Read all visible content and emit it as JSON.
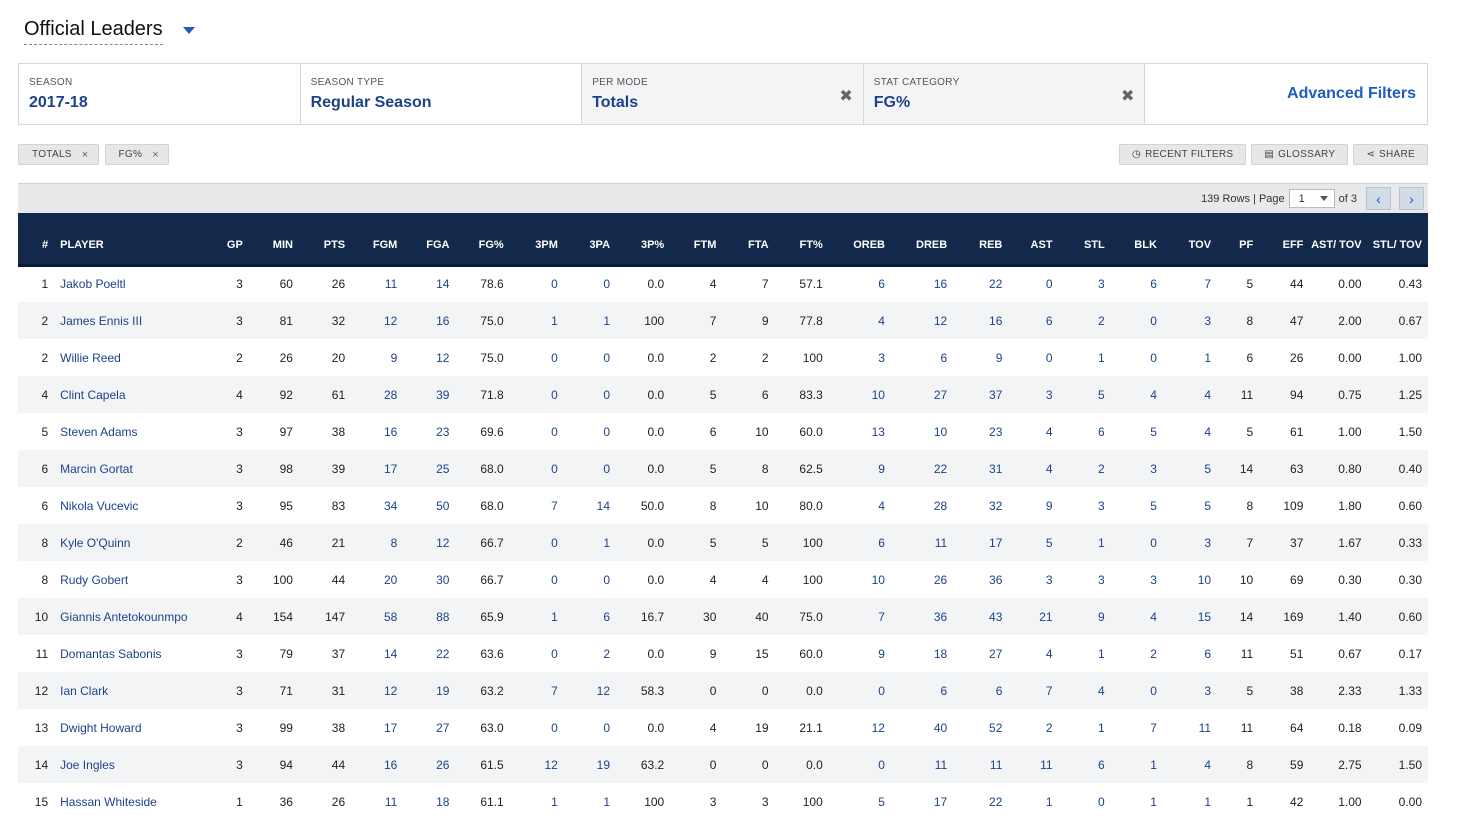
{
  "header": {
    "title": "Official Leaders"
  },
  "filters": [
    {
      "label": "SEASON",
      "value": "2017-18",
      "clearable": false
    },
    {
      "label": "SEASON TYPE",
      "value": "Regular Season",
      "clearable": false
    },
    {
      "label": "PER MODE",
      "value": "Totals",
      "clearable": true
    },
    {
      "label": "STAT CATEGORY",
      "value": "FG%",
      "clearable": true
    }
  ],
  "advanced_filters_label": "Advanced Filters",
  "clear_icon": "✖",
  "chips": [
    {
      "label": "TOTALS",
      "x": "×"
    },
    {
      "label": "FG%",
      "x": "×"
    }
  ],
  "tools": [
    {
      "label": "RECENT FILTERS",
      "icon": "clock-icon",
      "glyph": "◷"
    },
    {
      "label": "GLOSSARY",
      "icon": "book-icon",
      "glyph": "▤"
    },
    {
      "label": "SHARE",
      "icon": "share-icon",
      "glyph": "⋖"
    }
  ],
  "pager": {
    "rows_text": "139 Rows | Page",
    "page": "1",
    "of_text": "of 3",
    "prev": "‹",
    "next": "›"
  },
  "colors": {
    "header_bg": "#13294b",
    "link": "#1d428a",
    "accent": "#1d5dbf"
  },
  "table": {
    "columns": [
      "#",
      "PLAYER",
      "GP",
      "MIN",
      "PTS",
      "FGM",
      "FGA",
      "FG%",
      "3PM",
      "3PA",
      "3P%",
      "FTM",
      "FTA",
      "FT%",
      "OREB",
      "DREB",
      "REB",
      "AST",
      "STL",
      "BLK",
      "TOV",
      "PF",
      "EFF",
      "AST/ TOV",
      "STL/ TOV"
    ],
    "rows": [
      [
        "1",
        "Jakob Poeltl",
        "3",
        "60",
        "26",
        "11",
        "14",
        "78.6",
        "0",
        "0",
        "0.0",
        "4",
        "7",
        "57.1",
        "6",
        "16",
        "22",
        "0",
        "3",
        "6",
        "7",
        "5",
        "44",
        "0.00",
        "0.43"
      ],
      [
        "2",
        "James Ennis III",
        "3",
        "81",
        "32",
        "12",
        "16",
        "75.0",
        "1",
        "1",
        "100",
        "7",
        "9",
        "77.8",
        "4",
        "12",
        "16",
        "6",
        "2",
        "0",
        "3",
        "8",
        "47",
        "2.00",
        "0.67"
      ],
      [
        "2",
        "Willie Reed",
        "2",
        "26",
        "20",
        "9",
        "12",
        "75.0",
        "0",
        "0",
        "0.0",
        "2",
        "2",
        "100",
        "3",
        "6",
        "9",
        "0",
        "1",
        "0",
        "1",
        "6",
        "26",
        "0.00",
        "1.00"
      ],
      [
        "4",
        "Clint Capela",
        "4",
        "92",
        "61",
        "28",
        "39",
        "71.8",
        "0",
        "0",
        "0.0",
        "5",
        "6",
        "83.3",
        "10",
        "27",
        "37",
        "3",
        "5",
        "4",
        "4",
        "11",
        "94",
        "0.75",
        "1.25"
      ],
      [
        "5",
        "Steven Adams",
        "3",
        "97",
        "38",
        "16",
        "23",
        "69.6",
        "0",
        "0",
        "0.0",
        "6",
        "10",
        "60.0",
        "13",
        "10",
        "23",
        "4",
        "6",
        "5",
        "4",
        "5",
        "61",
        "1.00",
        "1.50"
      ],
      [
        "6",
        "Marcin Gortat",
        "3",
        "98",
        "39",
        "17",
        "25",
        "68.0",
        "0",
        "0",
        "0.0",
        "5",
        "8",
        "62.5",
        "9",
        "22",
        "31",
        "4",
        "2",
        "3",
        "5",
        "14",
        "63",
        "0.80",
        "0.40"
      ],
      [
        "6",
        "Nikola Vucevic",
        "3",
        "95",
        "83",
        "34",
        "50",
        "68.0",
        "7",
        "14",
        "50.0",
        "8",
        "10",
        "80.0",
        "4",
        "28",
        "32",
        "9",
        "3",
        "5",
        "5",
        "8",
        "109",
        "1.80",
        "0.60"
      ],
      [
        "8",
        "Kyle O'Quinn",
        "2",
        "46",
        "21",
        "8",
        "12",
        "66.7",
        "0",
        "1",
        "0.0",
        "5",
        "5",
        "100",
        "6",
        "11",
        "17",
        "5",
        "1",
        "0",
        "3",
        "7",
        "37",
        "1.67",
        "0.33"
      ],
      [
        "8",
        "Rudy Gobert",
        "3",
        "100",
        "44",
        "20",
        "30",
        "66.7",
        "0",
        "0",
        "0.0",
        "4",
        "4",
        "100",
        "10",
        "26",
        "36",
        "3",
        "3",
        "3",
        "10",
        "10",
        "69",
        "0.30",
        "0.30"
      ],
      [
        "10",
        "Giannis Antetokounmpo",
        "4",
        "154",
        "147",
        "58",
        "88",
        "65.9",
        "1",
        "6",
        "16.7",
        "30",
        "40",
        "75.0",
        "7",
        "36",
        "43",
        "21",
        "9",
        "4",
        "15",
        "14",
        "169",
        "1.40",
        "0.60"
      ],
      [
        "11",
        "Domantas Sabonis",
        "3",
        "79",
        "37",
        "14",
        "22",
        "63.6",
        "0",
        "2",
        "0.0",
        "9",
        "15",
        "60.0",
        "9",
        "18",
        "27",
        "4",
        "1",
        "2",
        "6",
        "11",
        "51",
        "0.67",
        "0.17"
      ],
      [
        "12",
        "Ian Clark",
        "3",
        "71",
        "31",
        "12",
        "19",
        "63.2",
        "7",
        "12",
        "58.3",
        "0",
        "0",
        "0.0",
        "0",
        "6",
        "6",
        "7",
        "4",
        "0",
        "3",
        "5",
        "38",
        "2.33",
        "1.33"
      ],
      [
        "13",
        "Dwight Howard",
        "3",
        "99",
        "38",
        "17",
        "27",
        "63.0",
        "0",
        "0",
        "0.0",
        "4",
        "19",
        "21.1",
        "12",
        "40",
        "52",
        "2",
        "1",
        "7",
        "11",
        "11",
        "64",
        "0.18",
        "0.09"
      ],
      [
        "14",
        "Joe Ingles",
        "3",
        "94",
        "44",
        "16",
        "26",
        "61.5",
        "12",
        "19",
        "63.2",
        "0",
        "0",
        "0.0",
        "0",
        "11",
        "11",
        "11",
        "6",
        "1",
        "4",
        "8",
        "59",
        "2.75",
        "1.50"
      ],
      [
        "15",
        "Hassan Whiteside",
        "1",
        "36",
        "26",
        "11",
        "18",
        "61.1",
        "1",
        "1",
        "100",
        "3",
        "3",
        "100",
        "5",
        "17",
        "22",
        "1",
        "0",
        "1",
        "1",
        "1",
        "42",
        "1.00",
        "0.00"
      ]
    ]
  }
}
